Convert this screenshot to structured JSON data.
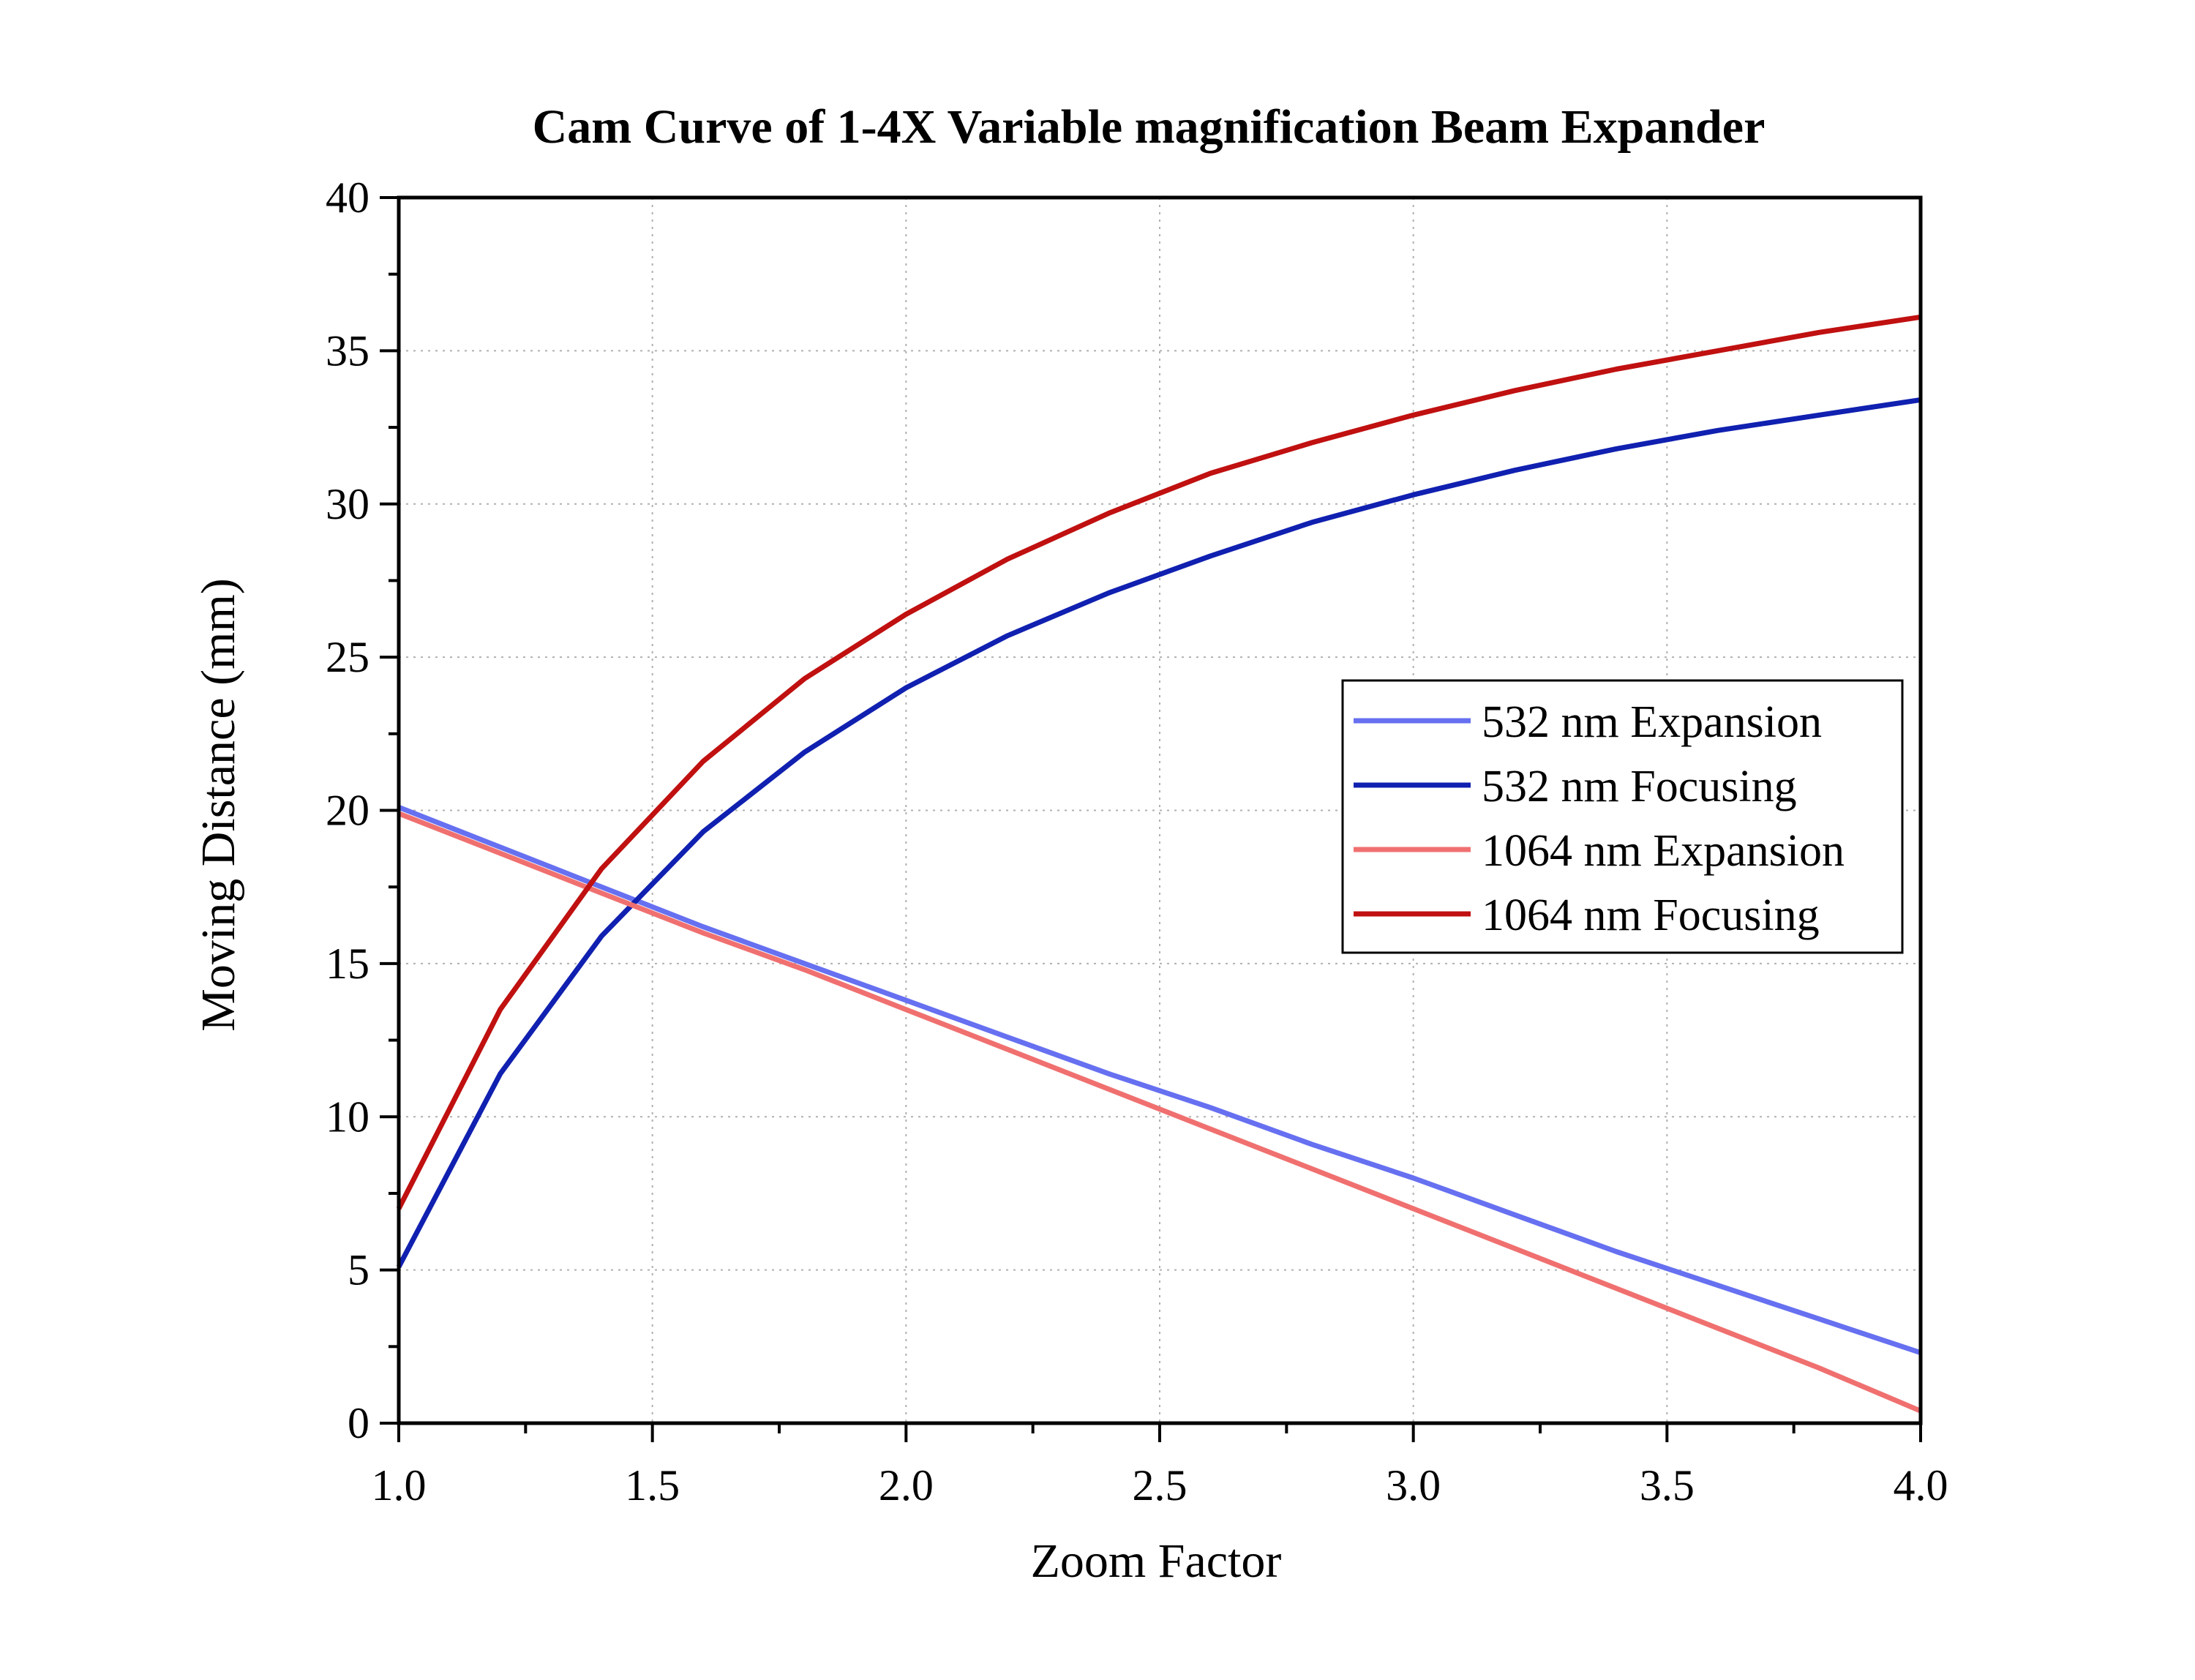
{
  "chart_data": {
    "type": "line",
    "title": "Cam Curve of 1-4X Variable magnification Beam Expander",
    "xlabel": "Zoom Factor",
    "ylabel": "Moving Distance (mm)",
    "xlim": [
      1.0,
      4.0
    ],
    "ylim": [
      0,
      40
    ],
    "x_ticks": [
      "1.0",
      "1.5",
      "2.0",
      "2.5",
      "3.0",
      "3.5",
      "4.0"
    ],
    "y_ticks": [
      "0",
      "5",
      "10",
      "15",
      "20",
      "25",
      "30",
      "35",
      "40"
    ],
    "grid": true,
    "legend_position": "right-middle",
    "x": [
      1.0,
      1.2,
      1.4,
      1.6,
      1.8,
      2.0,
      2.2,
      2.4,
      2.6,
      2.8,
      3.0,
      3.2,
      3.4,
      3.6,
      3.8,
      4.0
    ],
    "series": [
      {
        "name": "532 nm Expansion",
        "color": "#6670f0",
        "values": [
          20.1,
          18.8,
          17.5,
          16.2,
          15.0,
          13.8,
          12.6,
          11.4,
          10.3,
          9.1,
          8.0,
          6.8,
          5.6,
          4.5,
          3.4,
          2.3
        ]
      },
      {
        "name": "532 nm Focusing",
        "color": "#1020b0",
        "values": [
          5.1,
          11.4,
          15.9,
          19.3,
          21.9,
          24.0,
          25.7,
          27.1,
          28.3,
          29.4,
          30.3,
          31.1,
          31.8,
          32.4,
          32.9,
          33.4
        ]
      },
      {
        "name": "1064 nm Expansion",
        "color": "#f07070",
        "values": [
          19.9,
          18.6,
          17.3,
          16.0,
          14.8,
          13.5,
          12.2,
          10.9,
          9.6,
          8.3,
          7.0,
          5.7,
          4.4,
          3.1,
          1.8,
          0.4
        ]
      },
      {
        "name": "1064 nm Focusing",
        "color": "#c01010",
        "values": [
          7.0,
          13.5,
          18.1,
          21.6,
          24.3,
          26.4,
          28.2,
          29.7,
          31.0,
          32.0,
          32.9,
          33.7,
          34.4,
          35.0,
          35.6,
          36.1
        ]
      }
    ]
  }
}
